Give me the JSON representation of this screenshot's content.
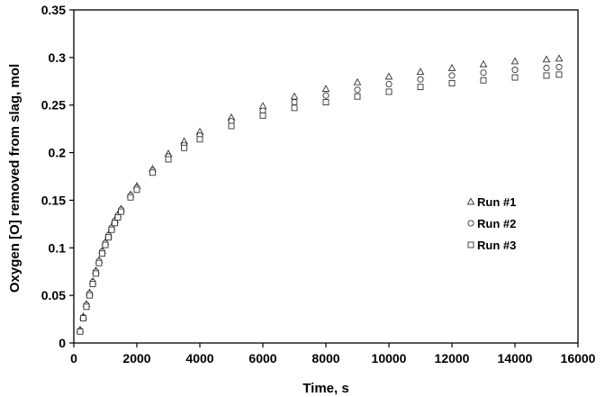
{
  "chart_data": {
    "type": "scatter",
    "title": "",
    "xlabel": "Time, s",
    "ylabel": "Oxygen [O] removed from slag, mol",
    "xlim": [
      0,
      16000
    ],
    "ylim": [
      0,
      0.35
    ],
    "xticks": [
      0,
      2000,
      4000,
      6000,
      8000,
      10000,
      12000,
      14000,
      16000
    ],
    "yticks": [
      0,
      0.05,
      0.1,
      0.15,
      0.2,
      0.25,
      0.3,
      0.35
    ],
    "xtick_labels": [
      "0",
      "2000",
      "4000",
      "6000",
      "8000",
      "10000",
      "12000",
      "14000",
      "16000"
    ],
    "ytick_labels": [
      "0",
      "0.05",
      "0.1",
      "0.15",
      "0.2",
      "0.25",
      "0.3",
      "0.35"
    ],
    "grid": false,
    "legend_position": "right-middle",
    "series": [
      {
        "name": "Run #1",
        "marker": "triangle",
        "x": [
          200,
          300,
          400,
          500,
          600,
          700,
          800,
          900,
          1000,
          1100,
          1200,
          1300,
          1400,
          1500,
          1800,
          2000,
          2500,
          3000,
          3500,
          4000,
          5000,
          6000,
          7000,
          8000,
          9000,
          10000,
          11000,
          12000,
          13000,
          14000,
          15000,
          15400
        ],
        "y": [
          0.014,
          0.028,
          0.041,
          0.053,
          0.065,
          0.076,
          0.087,
          0.097,
          0.106,
          0.114,
          0.122,
          0.129,
          0.135,
          0.141,
          0.156,
          0.165,
          0.183,
          0.199,
          0.212,
          0.222,
          0.237,
          0.249,
          0.259,
          0.267,
          0.274,
          0.28,
          0.285,
          0.289,
          0.293,
          0.296,
          0.298,
          0.299
        ]
      },
      {
        "name": "Run #2",
        "marker": "circle",
        "x": [
          200,
          300,
          400,
          500,
          600,
          700,
          800,
          900,
          1000,
          1100,
          1200,
          1300,
          1400,
          1500,
          1800,
          2000,
          2500,
          3000,
          3500,
          4000,
          5000,
          6000,
          7000,
          8000,
          9000,
          10000,
          11000,
          12000,
          13000,
          14000,
          15000,
          15400
        ],
        "y": [
          0.013,
          0.027,
          0.04,
          0.052,
          0.064,
          0.075,
          0.086,
          0.096,
          0.105,
          0.113,
          0.121,
          0.128,
          0.134,
          0.14,
          0.155,
          0.163,
          0.181,
          0.196,
          0.208,
          0.218,
          0.233,
          0.244,
          0.253,
          0.26,
          0.266,
          0.272,
          0.277,
          0.281,
          0.284,
          0.287,
          0.289,
          0.29
        ]
      },
      {
        "name": "Run #3",
        "marker": "square",
        "x": [
          200,
          300,
          400,
          500,
          600,
          700,
          800,
          900,
          1000,
          1100,
          1200,
          1300,
          1400,
          1500,
          1800,
          2000,
          2500,
          3000,
          3500,
          4000,
          5000,
          6000,
          7000,
          8000,
          9000,
          10000,
          11000,
          12000,
          13000,
          14000,
          15000,
          15400
        ],
        "y": [
          0.012,
          0.026,
          0.038,
          0.05,
          0.062,
          0.073,
          0.084,
          0.094,
          0.103,
          0.111,
          0.119,
          0.126,
          0.132,
          0.138,
          0.153,
          0.161,
          0.179,
          0.193,
          0.205,
          0.214,
          0.228,
          0.239,
          0.247,
          0.253,
          0.259,
          0.264,
          0.269,
          0.273,
          0.276,
          0.279,
          0.281,
          0.282
        ]
      }
    ]
  }
}
